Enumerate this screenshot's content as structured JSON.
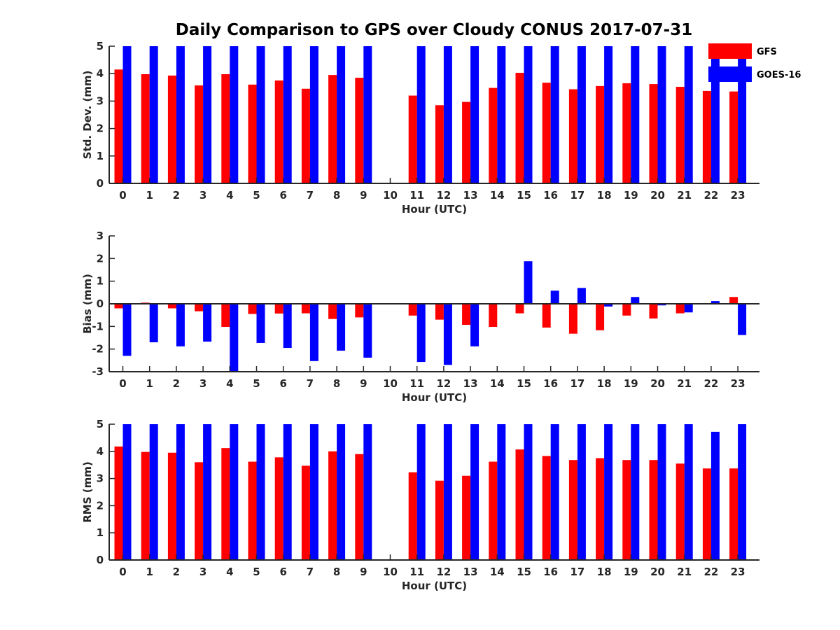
{
  "figure": {
    "title": "Daily Comparison to GPS over Cloudy CONUS 2017-07-31"
  },
  "legend": {
    "items": [
      {
        "label": "GFS",
        "color": "#ff0000"
      },
      {
        "label": "GOES-16",
        "color": "#0000ff"
      }
    ],
    "placement": "top-right"
  },
  "chart_data": [
    {
      "type": "bar",
      "title": "Daily Comparison to GPS over Cloudy CONUS 2017-07-31",
      "xlabel": "Hour (UTC)",
      "ylabel": "Std. Dev. (mm)",
      "ylim": [
        0,
        5
      ],
      "yticks": [
        0,
        1,
        2,
        3,
        4,
        5
      ],
      "grid": false,
      "categories": [
        "0",
        "1",
        "2",
        "3",
        "4",
        "5",
        "6",
        "7",
        "8",
        "9",
        "10",
        "11",
        "12",
        "13",
        "14",
        "15",
        "16",
        "17",
        "18",
        "19",
        "20",
        "21",
        "22",
        "23"
      ],
      "series": [
        {
          "name": "GFS",
          "color": "#ff0000",
          "values": [
            4.15,
            3.98,
            3.93,
            3.57,
            3.98,
            3.6,
            3.75,
            3.45,
            3.95,
            3.85,
            null,
            3.2,
            2.85,
            2.97,
            3.48,
            4.03,
            3.67,
            3.43,
            3.55,
            3.65,
            3.62,
            3.52,
            3.37,
            3.35
          ]
        },
        {
          "name": "GOES-16",
          "color": "#0000ff",
          "values": [
            5,
            5,
            5,
            5,
            5,
            5,
            5,
            5,
            5,
            5,
            null,
            5,
            5,
            5,
            5,
            5,
            5,
            5,
            5,
            5,
            5,
            5,
            4.7,
            5
          ]
        }
      ]
    },
    {
      "type": "bar",
      "xlabel": "Hour (UTC)",
      "ylabel": "Bias (mm)",
      "ylim": [
        -3,
        3
      ],
      "yticks": [
        -3,
        -2,
        -1,
        0,
        1,
        2,
        3
      ],
      "zero_line": true,
      "grid": false,
      "categories": [
        "0",
        "1",
        "2",
        "3",
        "4",
        "5",
        "6",
        "7",
        "8",
        "9",
        "10",
        "11",
        "12",
        "13",
        "14",
        "15",
        "16",
        "17",
        "18",
        "19",
        "20",
        "21",
        "22",
        "23"
      ],
      "series": [
        {
          "name": "GFS",
          "color": "#ff0000",
          "values": [
            -0.2,
            0.05,
            -0.2,
            -0.33,
            -1.02,
            -0.45,
            -0.43,
            -0.42,
            -0.67,
            -0.6,
            null,
            -0.52,
            -0.7,
            -0.93,
            -1.02,
            -0.42,
            -1.05,
            -1.32,
            -1.17,
            -0.52,
            -0.65,
            -0.42,
            0.0,
            0.3
          ]
        },
        {
          "name": "GOES-16",
          "color": "#0000ff",
          "values": [
            -2.3,
            -1.7,
            -1.88,
            -1.67,
            -2.98,
            -1.73,
            -1.95,
            -2.53,
            -2.07,
            -2.38,
            null,
            -2.57,
            -2.7,
            -1.88,
            0.02,
            1.88,
            0.58,
            0.7,
            -0.12,
            0.3,
            -0.07,
            -0.38,
            0.12,
            -1.38
          ]
        }
      ]
    },
    {
      "type": "bar",
      "xlabel": "Hour (UTC)",
      "ylabel": "RMS (mm)",
      "ylim": [
        0,
        5
      ],
      "yticks": [
        0,
        1,
        2,
        3,
        4,
        5
      ],
      "grid": false,
      "categories": [
        "0",
        "1",
        "2",
        "3",
        "4",
        "5",
        "6",
        "7",
        "8",
        "9",
        "10",
        "11",
        "12",
        "13",
        "14",
        "15",
        "16",
        "17",
        "18",
        "19",
        "20",
        "21",
        "22",
        "23"
      ],
      "series": [
        {
          "name": "GFS",
          "color": "#ff0000",
          "values": [
            4.18,
            3.98,
            3.95,
            3.6,
            4.12,
            3.62,
            3.78,
            3.47,
            4.0,
            3.9,
            null,
            3.23,
            2.92,
            3.1,
            3.62,
            4.07,
            3.83,
            3.68,
            3.75,
            3.68,
            3.68,
            3.55,
            3.37,
            3.37
          ]
        },
        {
          "name": "GOES-16",
          "color": "#0000ff",
          "values": [
            5,
            5,
            5,
            5,
            5,
            5,
            5,
            5,
            5,
            5,
            null,
            5,
            5,
            5,
            5,
            5,
            5,
            5,
            5,
            5,
            5,
            5,
            4.72,
            5
          ]
        }
      ]
    }
  ]
}
